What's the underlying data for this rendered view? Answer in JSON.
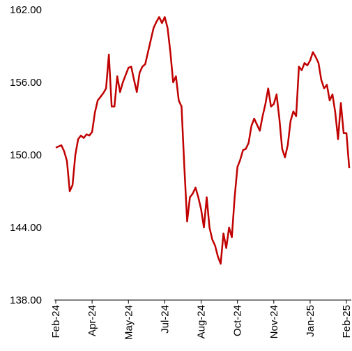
{
  "chart_data": {
    "type": "line",
    "categories": [
      "Feb-24",
      null,
      null,
      null,
      null,
      null,
      null,
      null,
      null,
      null,
      null,
      null,
      null,
      "Apr-24",
      null,
      null,
      null,
      null,
      null,
      null,
      null,
      null,
      null,
      null,
      null,
      null,
      "May-24",
      null,
      null,
      null,
      null,
      null,
      null,
      null,
      null,
      null,
      null,
      null,
      null,
      "Jul-24",
      null,
      null,
      null,
      null,
      null,
      null,
      null,
      null,
      null,
      null,
      null,
      null,
      "Aug-24",
      null,
      null,
      null,
      null,
      null,
      null,
      null,
      null,
      null,
      null,
      null,
      null,
      "Oct-24",
      null,
      null,
      null,
      null,
      null,
      null,
      null,
      null,
      null,
      null,
      null,
      null,
      "Nov-24",
      null,
      null,
      null,
      null,
      null,
      null,
      null,
      null,
      null,
      null,
      null,
      null,
      "Jan-25",
      null,
      null,
      null,
      null,
      null,
      null,
      null,
      null,
      null,
      null,
      null,
      null,
      "Feb-25",
      null
    ],
    "values": [
      150.6,
      150.7,
      150.8,
      150.3,
      149.5,
      147.0,
      147.5,
      150.0,
      151.3,
      151.6,
      151.4,
      151.7,
      151.6,
      151.9,
      153.5,
      154.5,
      154.8,
      155.1,
      155.5,
      158.3,
      154.0,
      154.0,
      156.5,
      155.2,
      156.0,
      156.6,
      157.2,
      157.3,
      156.2,
      155.2,
      156.8,
      157.3,
      157.5,
      158.5,
      159.5,
      160.5,
      161.0,
      161.4,
      160.9,
      161.4,
      160.5,
      158.5,
      156.0,
      156.5,
      154.5,
      154.0,
      149.0,
      144.5,
      146.5,
      146.8,
      147.3,
      146.5,
      145.5,
      144.0,
      146.5,
      144.0,
      143.0,
      142.5,
      141.6,
      141.0,
      143.5,
      142.3,
      144.0,
      143.2,
      146.5,
      149.0,
      149.6,
      150.4,
      150.5,
      151.0,
      152.4,
      153.0,
      152.5,
      152.0,
      153.2,
      154.2,
      155.5,
      154.0,
      154.2,
      155.0,
      153.0,
      150.5,
      149.8,
      150.8,
      152.8,
      153.6,
      153.2,
      157.3,
      157.0,
      157.6,
      157.4,
      157.8,
      158.5,
      158.1,
      157.6,
      156.2,
      155.5,
      155.8,
      154.5,
      155.0,
      153.5,
      151.3,
      154.3,
      151.8,
      151.8,
      148.9
    ],
    "color": "#c00000",
    "ylim": [
      138,
      162
    ],
    "yticks": [
      {
        "value": 138,
        "label": "138.00"
      },
      {
        "value": 144,
        "label": "144.00"
      },
      {
        "value": 150,
        "label": "150.00"
      },
      {
        "value": 156,
        "label": "156.00"
      },
      {
        "value": 162,
        "label": "162.00"
      }
    ]
  }
}
